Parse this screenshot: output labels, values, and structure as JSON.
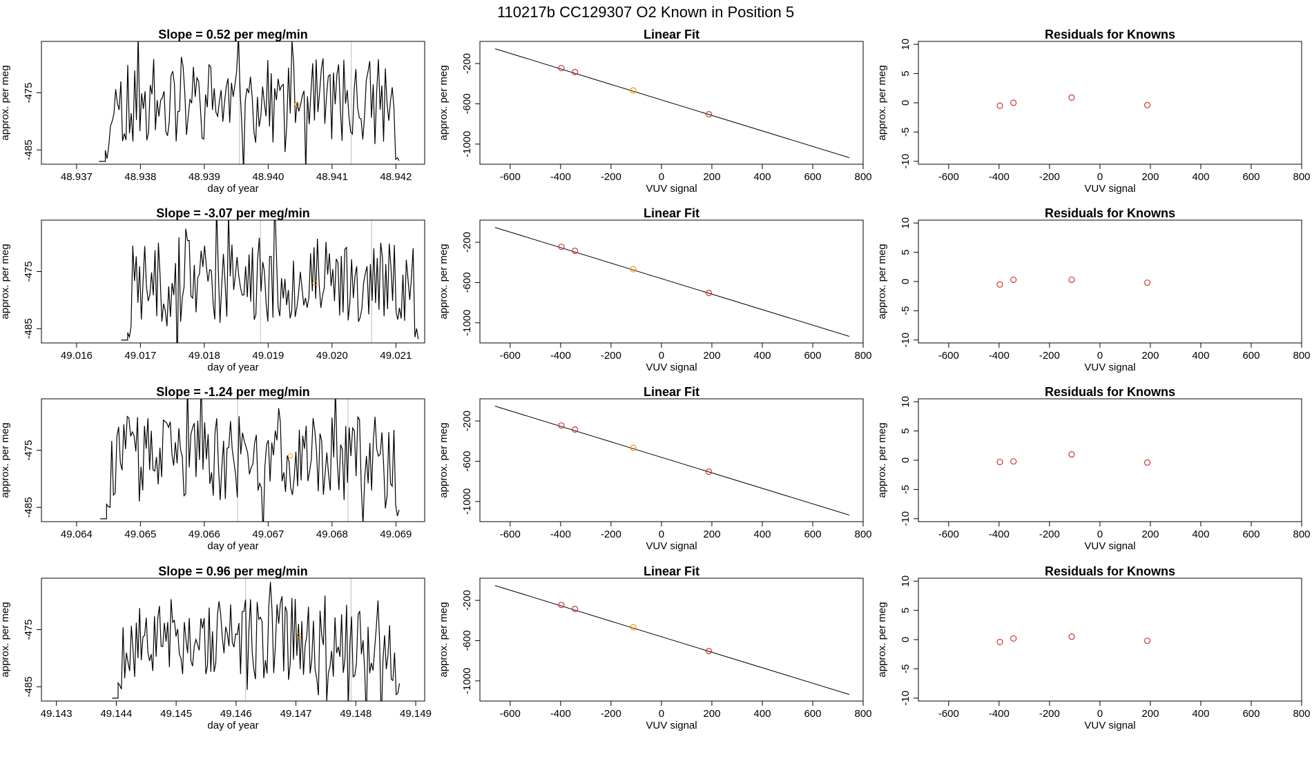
{
  "page": {
    "title": "110217b     CC129307   O2 Known in Position  5"
  },
  "styles": {
    "line_color": "#000000",
    "point_color": "#cd3333",
    "highlight_color": "#ff8c00",
    "vline_color": "#bebebe",
    "background": "#ffffff"
  },
  "chart_data": [
    {
      "type": "line",
      "panel": "slope",
      "row": 1,
      "title": "Slope =  0.52  per meg/min",
      "xlabel": "day of year",
      "ylabel": "approx. per meg",
      "xlim": [
        48.93645,
        48.94245
      ],
      "ylim": [
        -487.5,
        -466
      ],
      "xticks": [
        48.937,
        48.938,
        48.939,
        48.94,
        48.941,
        48.942
      ],
      "xtick_labels": [
        "48.937",
        "48.938",
        "48.939",
        "48.940",
        "48.941",
        "48.942"
      ],
      "yticks": [
        -475,
        -485
      ],
      "ytick_labels": [
        "-475",
        "-485"
      ],
      "series_start": 48.93745,
      "series_end": 48.94205,
      "series_points": 170,
      "seed": 11,
      "vlines": [
        48.93955,
        48.9413
      ],
      "highlight_point": {
        "x": 48.94045,
        "y": -477
      }
    },
    {
      "type": "line",
      "panel": "fit",
      "row": 1,
      "title": "Linear Fit",
      "xlabel": "VUV signal",
      "ylabel": "approx. per meg",
      "xlim": [
        -720,
        800
      ],
      "ylim": [
        -1200,
        20
      ],
      "xticks": [
        -600,
        -400,
        -200,
        0,
        200,
        400,
        600,
        800
      ],
      "xtick_labels": [
        "-600",
        "-400",
        "-200",
        "0",
        "200",
        "400",
        "600",
        "800"
      ],
      "yticks": [
        -200,
        -600,
        -1000
      ],
      "ytick_labels": [
        "-200",
        "-600",
        "-1000"
      ],
      "fit_line": {
        "x": [
          -660,
          745
        ],
        "y": [
          -53,
          -1135
        ]
      },
      "points": [
        {
          "x": -397,
          "y": -245
        },
        {
          "x": -343,
          "y": -285
        },
        {
          "x": -112,
          "y": -467
        },
        {
          "x": 188,
          "y": -704
        }
      ],
      "highlight_point": {
        "x": -112,
        "y": -467
      }
    },
    {
      "type": "scatter",
      "panel": "residuals",
      "row": 1,
      "title": "Residuals for Knowns",
      "xlabel": "VUV signal",
      "ylabel": "approx. per meg",
      "xlim": [
        -720,
        800
      ],
      "ylim": [
        -10.5,
        10.5
      ],
      "xticks": [
        -600,
        -400,
        -200,
        0,
        200,
        400,
        600,
        800
      ],
      "xtick_labels": [
        "-600",
        "-400",
        "-200",
        "0",
        "200",
        "400",
        "600",
        "800"
      ],
      "yticks": [
        10,
        5,
        0,
        -5,
        -10
      ],
      "ytick_labels": [
        "10",
        "5",
        "0",
        "-5",
        "-10"
      ],
      "points": [
        {
          "x": -397,
          "y": -0.5
        },
        {
          "x": -343,
          "y": 0.0
        },
        {
          "x": -112,
          "y": 0.9
        },
        {
          "x": 188,
          "y": -0.4
        }
      ]
    },
    {
      "type": "line",
      "panel": "slope",
      "row": 2,
      "title": "Slope =  -3.07  per meg/min",
      "xlabel": "day of year",
      "ylabel": "approx. per meg",
      "xlim": [
        49.01545,
        49.02145
      ],
      "ylim": [
        -487.5,
        -466
      ],
      "xticks": [
        49.016,
        49.017,
        49.018,
        49.019,
        49.02,
        49.021
      ],
      "xtick_labels": [
        "49.016",
        "49.017",
        "49.018",
        "49.019",
        "49.020",
        "49.021"
      ],
      "yticks": [
        -475,
        -485
      ],
      "ytick_labels": [
        "-475",
        "-485"
      ],
      "series_start": 49.0168,
      "series_end": 49.02135,
      "series_points": 170,
      "seed": 23,
      "vlines": [
        49.01888,
        49.02062
      ],
      "highlight_point": {
        "x": 49.01973,
        "y": -477
      }
    },
    {
      "type": "line",
      "panel": "fit",
      "row": 2,
      "title": "Linear Fit",
      "xlabel": "VUV signal",
      "ylabel": "approx. per meg",
      "xlim": [
        -720,
        800
      ],
      "ylim": [
        -1200,
        20
      ],
      "xticks": [
        -600,
        -400,
        -200,
        0,
        200,
        400,
        600,
        800
      ],
      "xtick_labels": [
        "-600",
        "-400",
        "-200",
        "0",
        "200",
        "400",
        "600",
        "800"
      ],
      "yticks": [
        -200,
        -600,
        -1000
      ],
      "ytick_labels": [
        "-200",
        "-600",
        "-1000"
      ],
      "fit_line": {
        "x": [
          -660,
          745
        ],
        "y": [
          -53,
          -1135
        ]
      },
      "points": [
        {
          "x": -397,
          "y": -245
        },
        {
          "x": -343,
          "y": -285
        },
        {
          "x": -112,
          "y": -467
        },
        {
          "x": 188,
          "y": -704
        }
      ],
      "highlight_point": {
        "x": -112,
        "y": -467
      }
    },
    {
      "type": "scatter",
      "panel": "residuals",
      "row": 2,
      "title": "Residuals for Knowns",
      "xlabel": "VUV signal",
      "ylabel": "approx. per meg",
      "xlim": [
        -720,
        800
      ],
      "ylim": [
        -10.5,
        10.5
      ],
      "xticks": [
        -600,
        -400,
        -200,
        0,
        200,
        400,
        600,
        800
      ],
      "xtick_labels": [
        "-600",
        "-400",
        "-200",
        "0",
        "200",
        "400",
        "600",
        "800"
      ],
      "yticks": [
        10,
        5,
        0,
        -5,
        -10
      ],
      "ytick_labels": [
        "10",
        "5",
        "0",
        "-5",
        "-10"
      ],
      "points": [
        {
          "x": -397,
          "y": -0.5
        },
        {
          "x": -343,
          "y": 0.3
        },
        {
          "x": -112,
          "y": 0.3
        },
        {
          "x": 188,
          "y": -0.2
        }
      ]
    },
    {
      "type": "line",
      "panel": "slope",
      "row": 3,
      "title": "Slope =  -1.24  per meg/min",
      "xlabel": "day of year",
      "ylabel": "approx. per meg",
      "xlim": [
        49.06345,
        49.06945
      ],
      "ylim": [
        -487.5,
        -466
      ],
      "xticks": [
        49.064,
        49.065,
        49.066,
        49.067,
        49.068,
        49.069
      ],
      "xtick_labels": [
        "49.064",
        "49.065",
        "49.066",
        "49.067",
        "49.068",
        "49.069"
      ],
      "yticks": [
        -475,
        -485
      ],
      "ytick_labels": [
        "-475",
        "-485"
      ],
      "series_start": 49.06447,
      "series_end": 49.06905,
      "series_points": 170,
      "seed": 37,
      "vlines": [
        49.06652,
        49.06825
      ],
      "highlight_point": {
        "x": 49.06735,
        "y": -476
      }
    },
    {
      "type": "line",
      "panel": "fit",
      "row": 3,
      "title": "Linear Fit",
      "xlabel": "VUV signal",
      "ylabel": "approx. per meg",
      "xlim": [
        -720,
        800
      ],
      "ylim": [
        -1200,
        20
      ],
      "xticks": [
        -600,
        -400,
        -200,
        0,
        200,
        400,
        600,
        800
      ],
      "xtick_labels": [
        "-600",
        "-400",
        "-200",
        "0",
        "200",
        "400",
        "600",
        "800"
      ],
      "yticks": [
        -200,
        -600,
        -1000
      ],
      "ytick_labels": [
        "-200",
        "-600",
        "-1000"
      ],
      "fit_line": {
        "x": [
          -660,
          745
        ],
        "y": [
          -53,
          -1135
        ]
      },
      "points": [
        {
          "x": -397,
          "y": -245
        },
        {
          "x": -343,
          "y": -285
        },
        {
          "x": -112,
          "y": -467
        },
        {
          "x": 188,
          "y": -704
        }
      ],
      "highlight_point": {
        "x": -112,
        "y": -467
      }
    },
    {
      "type": "scatter",
      "panel": "residuals",
      "row": 3,
      "title": "Residuals for Knowns",
      "xlabel": "VUV signal",
      "ylabel": "approx. per meg",
      "xlim": [
        -720,
        800
      ],
      "ylim": [
        -10.5,
        10.5
      ],
      "xticks": [
        -600,
        -400,
        -200,
        0,
        200,
        400,
        600,
        800
      ],
      "xtick_labels": [
        "-600",
        "-400",
        "-200",
        "0",
        "200",
        "400",
        "600",
        "800"
      ],
      "yticks": [
        10,
        5,
        0,
        -5,
        -10
      ],
      "ytick_labels": [
        "10",
        "5",
        "0",
        "-5",
        "-10"
      ],
      "points": [
        {
          "x": -397,
          "y": -0.3
        },
        {
          "x": -343,
          "y": -0.2
        },
        {
          "x": -112,
          "y": 1.0
        },
        {
          "x": 188,
          "y": -0.4
        }
      ]
    },
    {
      "type": "line",
      "panel": "slope",
      "row": 4,
      "title": "Slope =  0.96  per meg/min",
      "xlabel": "day of year",
      "ylabel": "approx. per meg",
      "xlim": [
        49.14275,
        49.14915
      ],
      "ylim": [
        -487.5,
        -466
      ],
      "xticks": [
        49.143,
        49.144,
        49.145,
        49.146,
        49.147,
        49.148,
        49.149
      ],
      "xtick_labels": [
        "49.143",
        "49.144",
        "49.145",
        "49.146",
        "49.147",
        "49.148",
        "49.149"
      ],
      "yticks": [
        -475,
        -485
      ],
      "ytick_labels": [
        "-475",
        "-485"
      ],
      "series_start": 49.14403,
      "series_end": 49.14873,
      "series_points": 170,
      "seed": 53,
      "vlines": [
        49.14616,
        49.14792
      ],
      "highlight_point": {
        "x": 49.14705,
        "y": -476
      }
    },
    {
      "type": "line",
      "panel": "fit",
      "row": 4,
      "title": "Linear Fit",
      "xlabel": "VUV signal",
      "ylabel": "approx. per meg",
      "xlim": [
        -720,
        800
      ],
      "ylim": [
        -1200,
        20
      ],
      "xticks": [
        -600,
        -400,
        -200,
        0,
        200,
        400,
        600,
        800
      ],
      "xtick_labels": [
        "-600",
        "-400",
        "-200",
        "0",
        "200",
        "400",
        "600",
        "800"
      ],
      "yticks": [
        -200,
        -600,
        -1000
      ],
      "ytick_labels": [
        "-200",
        "-600",
        "-1000"
      ],
      "fit_line": {
        "x": [
          -660,
          745
        ],
        "y": [
          -53,
          -1135
        ]
      },
      "points": [
        {
          "x": -397,
          "y": -245
        },
        {
          "x": -343,
          "y": -285
        },
        {
          "x": -112,
          "y": -467
        },
        {
          "x": 188,
          "y": -704
        }
      ],
      "highlight_point": {
        "x": -112,
        "y": -467
      }
    },
    {
      "type": "scatter",
      "panel": "residuals",
      "row": 4,
      "title": "Residuals for Knowns",
      "xlabel": "VUV signal",
      "ylabel": "approx. per meg",
      "xlim": [
        -720,
        800
      ],
      "ylim": [
        -10.5,
        10.5
      ],
      "xticks": [
        -600,
        -400,
        -200,
        0,
        200,
        400,
        600,
        800
      ],
      "xtick_labels": [
        "-600",
        "-400",
        "-200",
        "0",
        "200",
        "400",
        "600",
        "800"
      ],
      "yticks": [
        10,
        5,
        0,
        -5,
        -10
      ],
      "ytick_labels": [
        "10",
        "5",
        "0",
        "-5",
        "-10"
      ],
      "points": [
        {
          "x": -397,
          "y": -0.4
        },
        {
          "x": -343,
          "y": 0.2
        },
        {
          "x": -112,
          "y": 0.5
        },
        {
          "x": 188,
          "y": -0.2
        }
      ]
    }
  ]
}
